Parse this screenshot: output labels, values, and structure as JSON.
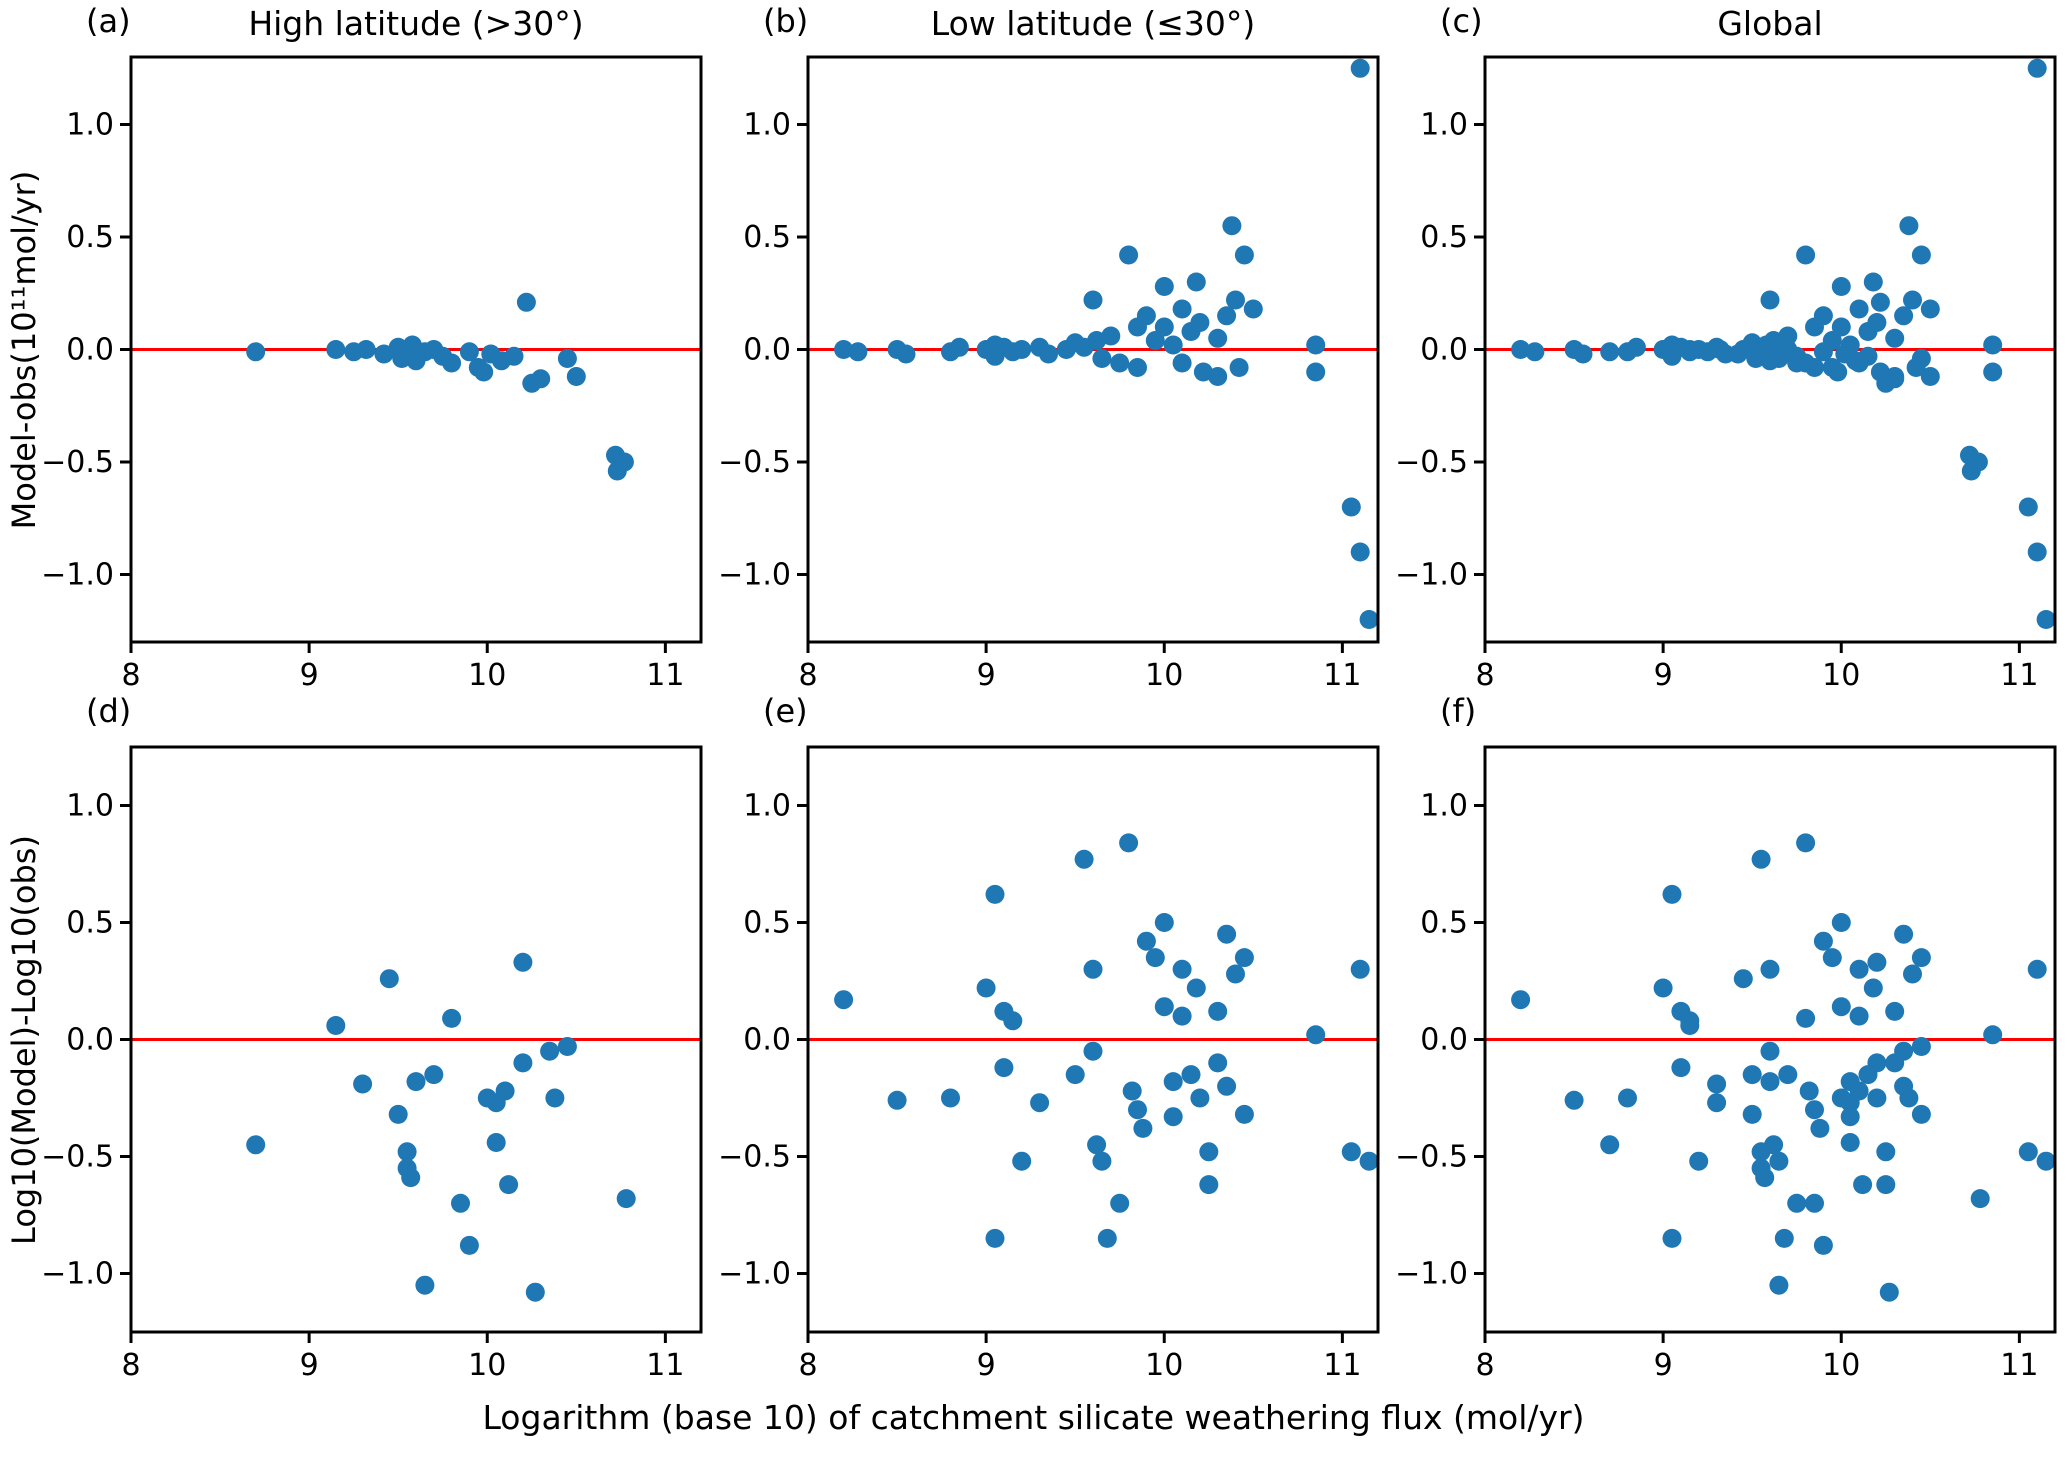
{
  "figure": {
    "xlabel": "Logarithm (base 10) of catchment silicate weathering flux (mol/yr)",
    "row_ylabels": [
      "Model-obs(10¹¹mol/yr)",
      "Log10(Model)-Log10(obs)"
    ],
    "marker_color": "#1f77b4",
    "zero_line_color": "#ff0000",
    "axis_color": "#000000"
  },
  "chart_data": [
    {
      "type": "scatter",
      "panel": "(a)",
      "title": "High latitude (>30°)",
      "xlim": [
        8,
        11.2
      ],
      "ylim": [
        -1.3,
        1.3
      ],
      "xticks": [
        8,
        9,
        10,
        11
      ],
      "yticks": [
        1.0,
        0.5,
        0.0,
        -0.5,
        -1.0
      ],
      "zero_line": true,
      "points": [
        [
          8.7,
          -0.01
        ],
        [
          9.15,
          0.0
        ],
        [
          9.25,
          -0.01
        ],
        [
          9.32,
          0.0
        ],
        [
          9.42,
          -0.02
        ],
        [
          9.5,
          0.01
        ],
        [
          9.52,
          -0.04
        ],
        [
          9.58,
          0.02
        ],
        [
          9.6,
          -0.05
        ],
        [
          9.65,
          -0.01
        ],
        [
          9.7,
          0.0
        ],
        [
          9.75,
          -0.03
        ],
        [
          9.8,
          -0.06
        ],
        [
          9.9,
          -0.01
        ],
        [
          9.95,
          -0.08
        ],
        [
          9.98,
          -0.1
        ],
        [
          10.02,
          -0.02
        ],
        [
          10.08,
          -0.05
        ],
        [
          10.15,
          -0.03
        ],
        [
          10.22,
          0.21
        ],
        [
          10.25,
          -0.15
        ],
        [
          10.3,
          -0.13
        ],
        [
          10.45,
          -0.04
        ],
        [
          10.5,
          -0.12
        ],
        [
          10.72,
          -0.47
        ],
        [
          10.73,
          -0.54
        ],
        [
          10.77,
          -0.5
        ]
      ]
    },
    {
      "type": "scatter",
      "panel": "(b)",
      "title": "Low latitude (≤30°)",
      "xlim": [
        8,
        11.2
      ],
      "ylim": [
        -1.3,
        1.3
      ],
      "xticks": [
        8,
        9,
        10,
        11
      ],
      "yticks": [
        1.0,
        0.5,
        0.0,
        -0.5,
        -1.0
      ],
      "zero_line": true,
      "points": [
        [
          8.2,
          0.0
        ],
        [
          8.28,
          -0.01
        ],
        [
          8.5,
          0.0
        ],
        [
          8.55,
          -0.02
        ],
        [
          8.8,
          -0.01
        ],
        [
          8.85,
          0.01
        ],
        [
          9.0,
          0.0
        ],
        [
          9.05,
          0.02
        ],
        [
          9.05,
          -0.03
        ],
        [
          9.1,
          0.01
        ],
        [
          9.15,
          -0.01
        ],
        [
          9.2,
          0.0
        ],
        [
          9.3,
          0.01
        ],
        [
          9.35,
          -0.02
        ],
        [
          9.45,
          0.0
        ],
        [
          9.5,
          0.03
        ],
        [
          9.55,
          0.01
        ],
        [
          9.6,
          0.22
        ],
        [
          9.62,
          0.04
        ],
        [
          9.65,
          -0.04
        ],
        [
          9.7,
          0.06
        ],
        [
          9.75,
          -0.06
        ],
        [
          9.8,
          0.42
        ],
        [
          9.85,
          0.1
        ],
        [
          9.85,
          -0.08
        ],
        [
          9.9,
          0.15
        ],
        [
          9.95,
          0.04
        ],
        [
          10.0,
          0.28
        ],
        [
          10.0,
          0.1
        ],
        [
          10.05,
          0.02
        ],
        [
          10.1,
          0.18
        ],
        [
          10.1,
          -0.06
        ],
        [
          10.15,
          0.08
        ],
        [
          10.18,
          0.3
        ],
        [
          10.2,
          0.12
        ],
        [
          10.22,
          -0.1
        ],
        [
          10.3,
          0.05
        ],
        [
          10.3,
          -0.12
        ],
        [
          10.35,
          0.15
        ],
        [
          10.38,
          0.55
        ],
        [
          10.4,
          0.22
        ],
        [
          10.42,
          -0.08
        ],
        [
          10.45,
          0.42
        ],
        [
          10.5,
          0.18
        ],
        [
          10.85,
          0.02
        ],
        [
          10.85,
          -0.1
        ],
        [
          11.05,
          -0.7
        ],
        [
          11.1,
          1.25
        ],
        [
          11.1,
          -0.9
        ],
        [
          11.15,
          -1.2
        ]
      ]
    },
    {
      "type": "scatter",
      "panel": "(c)",
      "title": "Global",
      "xlim": [
        8,
        11.2
      ],
      "ylim": [
        -1.3,
        1.3
      ],
      "xticks": [
        8,
        9,
        10,
        11
      ],
      "yticks": [
        1.0,
        0.5,
        0.0,
        -0.5,
        -1.0
      ],
      "zero_line": true,
      "points": [
        [
          8.7,
          -0.01
        ],
        [
          9.15,
          0.0
        ],
        [
          9.25,
          -0.01
        ],
        [
          9.32,
          0.0
        ],
        [
          9.42,
          -0.02
        ],
        [
          9.5,
          0.01
        ],
        [
          9.52,
          -0.04
        ],
        [
          9.58,
          0.02
        ],
        [
          9.6,
          -0.05
        ],
        [
          9.65,
          -0.01
        ],
        [
          9.7,
          0.0
        ],
        [
          9.75,
          -0.03
        ],
        [
          9.8,
          -0.06
        ],
        [
          9.9,
          -0.01
        ],
        [
          9.95,
          -0.08
        ],
        [
          9.98,
          -0.1
        ],
        [
          10.02,
          -0.02
        ],
        [
          10.08,
          -0.05
        ],
        [
          10.15,
          -0.03
        ],
        [
          10.22,
          0.21
        ],
        [
          10.25,
          -0.15
        ],
        [
          10.3,
          -0.13
        ],
        [
          10.45,
          -0.04
        ],
        [
          10.5,
          -0.12
        ],
        [
          10.72,
          -0.47
        ],
        [
          10.73,
          -0.54
        ],
        [
          10.77,
          -0.5
        ],
        [
          8.2,
          0.0
        ],
        [
          8.28,
          -0.01
        ],
        [
          8.5,
          0.0
        ],
        [
          8.55,
          -0.02
        ],
        [
          8.8,
          -0.01
        ],
        [
          8.85,
          0.01
        ],
        [
          9.0,
          0.0
        ],
        [
          9.05,
          0.02
        ],
        [
          9.05,
          -0.03
        ],
        [
          9.1,
          0.01
        ],
        [
          9.15,
          -0.01
        ],
        [
          9.2,
          0.0
        ],
        [
          9.3,
          0.01
        ],
        [
          9.35,
          -0.02
        ],
        [
          9.45,
          0.0
        ],
        [
          9.5,
          0.03
        ],
        [
          9.55,
          0.01
        ],
        [
          9.6,
          0.22
        ],
        [
          9.62,
          0.04
        ],
        [
          9.65,
          -0.04
        ],
        [
          9.7,
          0.06
        ],
        [
          9.75,
          -0.06
        ],
        [
          9.8,
          0.42
        ],
        [
          9.85,
          0.1
        ],
        [
          9.85,
          -0.08
        ],
        [
          9.9,
          0.15
        ],
        [
          9.95,
          0.04
        ],
        [
          10.0,
          0.28
        ],
        [
          10.0,
          0.1
        ],
        [
          10.05,
          0.02
        ],
        [
          10.1,
          0.18
        ],
        [
          10.1,
          -0.06
        ],
        [
          10.15,
          0.08
        ],
        [
          10.18,
          0.3
        ],
        [
          10.2,
          0.12
        ],
        [
          10.22,
          -0.1
        ],
        [
          10.3,
          0.05
        ],
        [
          10.3,
          -0.12
        ],
        [
          10.35,
          0.15
        ],
        [
          10.38,
          0.55
        ],
        [
          10.4,
          0.22
        ],
        [
          10.42,
          -0.08
        ],
        [
          10.45,
          0.42
        ],
        [
          10.5,
          0.18
        ],
        [
          10.85,
          0.02
        ],
        [
          10.85,
          -0.1
        ],
        [
          11.05,
          -0.7
        ],
        [
          11.1,
          1.25
        ],
        [
          11.1,
          -0.9
        ],
        [
          11.15,
          -1.2
        ]
      ]
    },
    {
      "type": "scatter",
      "panel": "(d)",
      "title": "",
      "xlim": [
        8,
        11.2
      ],
      "ylim": [
        -1.25,
        1.25
      ],
      "xticks": [
        8,
        9,
        10,
        11
      ],
      "yticks": [
        1.0,
        0.5,
        0.0,
        -0.5,
        -1.0
      ],
      "zero_line": true,
      "points": [
        [
          8.7,
          -0.45
        ],
        [
          9.15,
          0.06
        ],
        [
          9.3,
          -0.19
        ],
        [
          9.45,
          0.26
        ],
        [
          9.5,
          -0.32
        ],
        [
          9.55,
          -0.48
        ],
        [
          9.55,
          -0.55
        ],
        [
          9.57,
          -0.59
        ],
        [
          9.6,
          -0.18
        ],
        [
          9.65,
          -1.05
        ],
        [
          9.7,
          -0.15
        ],
        [
          9.8,
          0.09
        ],
        [
          9.85,
          -0.7
        ],
        [
          9.9,
          -0.88
        ],
        [
          10.0,
          -0.25
        ],
        [
          10.05,
          -0.27
        ],
        [
          10.05,
          -0.44
        ],
        [
          10.1,
          -0.22
        ],
        [
          10.12,
          -0.62
        ],
        [
          10.2,
          0.33
        ],
        [
          10.2,
          -0.1
        ],
        [
          10.27,
          -1.08
        ],
        [
          10.35,
          -0.05
        ],
        [
          10.38,
          -0.25
        ],
        [
          10.45,
          -0.03
        ],
        [
          10.78,
          -0.68
        ]
      ]
    },
    {
      "type": "scatter",
      "panel": "(e)",
      "title": "",
      "xlim": [
        8,
        11.2
      ],
      "ylim": [
        -1.25,
        1.25
      ],
      "xticks": [
        8,
        9,
        10,
        11
      ],
      "yticks": [
        1.0,
        0.5,
        0.0,
        -0.5,
        -1.0
      ],
      "zero_line": true,
      "points": [
        [
          8.2,
          0.17
        ],
        [
          8.5,
          -0.26
        ],
        [
          8.8,
          -0.25
        ],
        [
          9.0,
          0.22
        ],
        [
          9.05,
          0.62
        ],
        [
          9.05,
          -0.85
        ],
        [
          9.1,
          -0.12
        ],
        [
          9.1,
          0.12
        ],
        [
          9.15,
          0.08
        ],
        [
          9.2,
          -0.52
        ],
        [
          9.3,
          -0.27
        ],
        [
          9.5,
          -0.15
        ],
        [
          9.55,
          0.77
        ],
        [
          9.6,
          0.3
        ],
        [
          9.6,
          -0.05
        ],
        [
          9.62,
          -0.45
        ],
        [
          9.65,
          -0.52
        ],
        [
          9.68,
          -0.85
        ],
        [
          9.75,
          -0.7
        ],
        [
          9.8,
          0.84
        ],
        [
          9.82,
          -0.22
        ],
        [
          9.85,
          -0.3
        ],
        [
          9.88,
          -0.38
        ],
        [
          9.9,
          0.42
        ],
        [
          9.95,
          0.35
        ],
        [
          10.0,
          0.5
        ],
        [
          10.0,
          0.14
        ],
        [
          10.05,
          -0.18
        ],
        [
          10.05,
          -0.33
        ],
        [
          10.1,
          0.3
        ],
        [
          10.1,
          0.1
        ],
        [
          10.15,
          -0.15
        ],
        [
          10.18,
          0.22
        ],
        [
          10.2,
          -0.25
        ],
        [
          10.25,
          -0.48
        ],
        [
          10.25,
          -0.62
        ],
        [
          10.3,
          0.12
        ],
        [
          10.3,
          -0.1
        ],
        [
          10.35,
          0.45
        ],
        [
          10.35,
          -0.2
        ],
        [
          10.4,
          0.28
        ],
        [
          10.45,
          0.35
        ],
        [
          10.45,
          -0.32
        ],
        [
          10.85,
          0.02
        ],
        [
          11.05,
          -0.48
        ],
        [
          11.1,
          0.3
        ],
        [
          11.15,
          -0.52
        ]
      ]
    },
    {
      "type": "scatter",
      "panel": "(f)",
      "title": "",
      "xlim": [
        8,
        11.2
      ],
      "ylim": [
        -1.25,
        1.25
      ],
      "xticks": [
        8,
        9,
        10,
        11
      ],
      "yticks": [
        1.0,
        0.5,
        0.0,
        -0.5,
        -1.0
      ],
      "zero_line": true,
      "points": [
        [
          8.7,
          -0.45
        ],
        [
          9.15,
          0.06
        ],
        [
          9.3,
          -0.19
        ],
        [
          9.45,
          0.26
        ],
        [
          9.5,
          -0.32
        ],
        [
          9.55,
          -0.48
        ],
        [
          9.55,
          -0.55
        ],
        [
          9.57,
          -0.59
        ],
        [
          9.6,
          -0.18
        ],
        [
          9.65,
          -1.05
        ],
        [
          9.7,
          -0.15
        ],
        [
          9.8,
          0.09
        ],
        [
          9.85,
          -0.7
        ],
        [
          9.9,
          -0.88
        ],
        [
          10.0,
          -0.25
        ],
        [
          10.05,
          -0.27
        ],
        [
          10.05,
          -0.44
        ],
        [
          10.1,
          -0.22
        ],
        [
          10.12,
          -0.62
        ],
        [
          10.2,
          0.33
        ],
        [
          10.2,
          -0.1
        ],
        [
          10.27,
          -1.08
        ],
        [
          10.35,
          -0.05
        ],
        [
          10.38,
          -0.25
        ],
        [
          10.45,
          -0.03
        ],
        [
          10.78,
          -0.68
        ],
        [
          8.2,
          0.17
        ],
        [
          8.5,
          -0.26
        ],
        [
          8.8,
          -0.25
        ],
        [
          9.0,
          0.22
        ],
        [
          9.05,
          0.62
        ],
        [
          9.05,
          -0.85
        ],
        [
          9.1,
          -0.12
        ],
        [
          9.1,
          0.12
        ],
        [
          9.15,
          0.08
        ],
        [
          9.2,
          -0.52
        ],
        [
          9.3,
          -0.27
        ],
        [
          9.5,
          -0.15
        ],
        [
          9.55,
          0.77
        ],
        [
          9.6,
          0.3
        ],
        [
          9.6,
          -0.05
        ],
        [
          9.62,
          -0.45
        ],
        [
          9.65,
          -0.52
        ],
        [
          9.68,
          -0.85
        ],
        [
          9.75,
          -0.7
        ],
        [
          9.8,
          0.84
        ],
        [
          9.82,
          -0.22
        ],
        [
          9.85,
          -0.3
        ],
        [
          9.88,
          -0.38
        ],
        [
          9.9,
          0.42
        ],
        [
          9.95,
          0.35
        ],
        [
          10.0,
          0.5
        ],
        [
          10.0,
          0.14
        ],
        [
          10.05,
          -0.18
        ],
        [
          10.05,
          -0.33
        ],
        [
          10.1,
          0.3
        ],
        [
          10.1,
          0.1
        ],
        [
          10.15,
          -0.15
        ],
        [
          10.18,
          0.22
        ],
        [
          10.2,
          -0.25
        ],
        [
          10.25,
          -0.48
        ],
        [
          10.25,
          -0.62
        ],
        [
          10.3,
          0.12
        ],
        [
          10.3,
          -0.1
        ],
        [
          10.35,
          0.45
        ],
        [
          10.35,
          -0.2
        ],
        [
          10.4,
          0.28
        ],
        [
          10.45,
          0.35
        ],
        [
          10.45,
          -0.32
        ],
        [
          10.85,
          0.02
        ],
        [
          11.05,
          -0.48
        ],
        [
          11.1,
          0.3
        ],
        [
          11.15,
          -0.52
        ]
      ]
    }
  ]
}
